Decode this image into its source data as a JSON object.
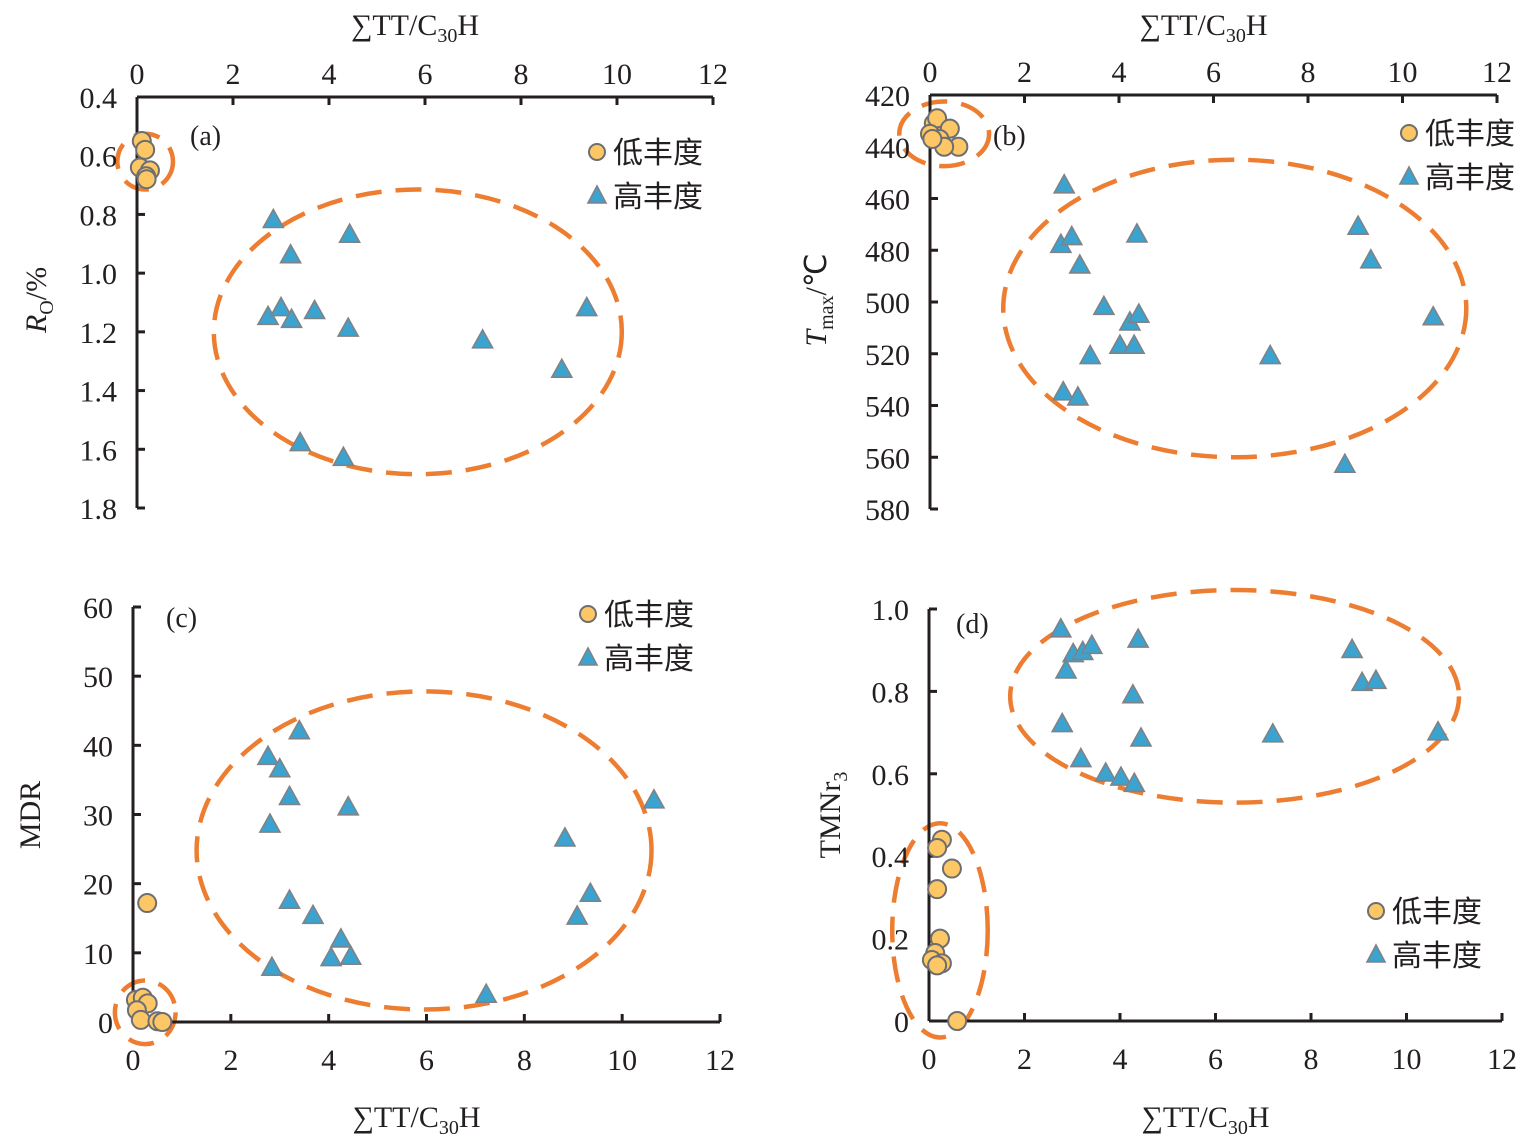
{
  "figure": {
    "legend_low": "低丰度",
    "legend_high": "高丰度",
    "colors": {
      "low": "#fdc766",
      "high": "#3ba3d0",
      "ellipse": "#ed7d31",
      "axis": "#231f20"
    }
  },
  "chart_data": [
    {
      "type": "scatter",
      "panel_label": "(a)",
      "xlabel": "∑TT/C30H",
      "xlabel_main": "∑TT/C",
      "xlabel_sub": "30",
      "xlabel_end": "H",
      "xaxis_position": "top",
      "ylabel_main": "R",
      "ylabel_sub": "O",
      "ylabel_end": "/%",
      "yaxis_inverted": true,
      "xlim": [
        0,
        12
      ],
      "ylim": [
        0.4,
        1.8
      ],
      "xticks": [
        "0",
        "2",
        "4",
        "6",
        "8",
        "10",
        "12"
      ],
      "xtick_values": [
        0,
        2,
        4,
        6,
        8,
        10,
        12
      ],
      "yticks": [
        "0.4",
        "0.6",
        "0.8",
        "1.0",
        "1.2",
        "1.4",
        "1.6",
        "1.8"
      ],
      "ytick_values": [
        0.4,
        0.6,
        0.8,
        1.0,
        1.2,
        1.4,
        1.6,
        1.8
      ],
      "legend": "top-right",
      "grid": false,
      "series": [
        {
          "name": "低丰度",
          "marker": "circle",
          "points": [
            [
              0.1,
              0.55
            ],
            [
              0.17,
              0.58
            ],
            [
              0.06,
              0.64
            ],
            [
              0.27,
              0.65
            ],
            [
              0.19,
              0.67
            ],
            [
              0.2,
              0.68
            ]
          ]
        },
        {
          "name": "高丰度",
          "marker": "triangle",
          "points": [
            [
              2.84,
              0.82
            ],
            [
              3.2,
              0.94
            ],
            [
              4.43,
              0.87
            ],
            [
              2.73,
              1.15
            ],
            [
              3.0,
              1.12
            ],
            [
              3.22,
              1.16
            ],
            [
              3.7,
              1.13
            ],
            [
              4.4,
              1.19
            ],
            [
              7.2,
              1.23
            ],
            [
              8.85,
              1.33
            ],
            [
              9.37,
              1.12
            ],
            [
              3.4,
              1.58
            ],
            [
              4.3,
              1.63
            ]
          ]
        }
      ],
      "ellipses": [
        {
          "group": "低丰度",
          "cx": 0.17,
          "cy": 0.62,
          "rx": 0.58,
          "ry": 0.095
        },
        {
          "group": "高丰度",
          "cx": 5.85,
          "cy": 1.2,
          "rx": 4.25,
          "ry": 0.485
        }
      ]
    },
    {
      "type": "scatter",
      "panel_label": "(b)",
      "xlabel": "∑TT/C30H",
      "xlabel_main": "∑TT/C",
      "xlabel_sub": "30",
      "xlabel_end": "H",
      "xaxis_position": "top",
      "ylabel_main": "T",
      "ylabel_sub": "max",
      "ylabel_end": "/℃",
      "yaxis_inverted": true,
      "xlim": [
        0,
        12
      ],
      "ylim": [
        420,
        580
      ],
      "xticks": [
        "0",
        "2",
        "4",
        "6",
        "8",
        "10",
        "12"
      ],
      "xtick_values": [
        0,
        2,
        4,
        6,
        8,
        10,
        12
      ],
      "yticks": [
        "420",
        "440",
        "460",
        "480",
        "500",
        "520",
        "540",
        "560",
        "580"
      ],
      "ytick_values": [
        420,
        440,
        460,
        480,
        500,
        520,
        540,
        560,
        580
      ],
      "legend": "top-right",
      "grid": false,
      "series": [
        {
          "name": "低丰度",
          "marker": "circle",
          "points": [
            [
              0.08,
              431
            ],
            [
              0.15,
              429
            ],
            [
              0.0,
              435
            ],
            [
              0.42,
              433
            ],
            [
              0.2,
              437
            ],
            [
              0.6,
              440
            ],
            [
              0.3,
              440
            ],
            [
              0.05,
              437
            ]
          ]
        },
        {
          "name": "高丰度",
          "marker": "triangle",
          "points": [
            [
              2.84,
              455
            ],
            [
              2.77,
              478
            ],
            [
              3.0,
              475
            ],
            [
              3.17,
              486
            ],
            [
              4.38,
              474
            ],
            [
              3.68,
              502
            ],
            [
              4.23,
              508
            ],
            [
              4.42,
              505
            ],
            [
              4.02,
              517
            ],
            [
              4.32,
              517
            ],
            [
              3.39,
              521
            ],
            [
              7.2,
              521
            ],
            [
              2.82,
              535
            ],
            [
              3.13,
              537
            ],
            [
              8.78,
              563
            ],
            [
              9.06,
              471
            ],
            [
              9.33,
              484
            ],
            [
              10.65,
              506
            ]
          ]
        }
      ],
      "ellipses": [
        {
          "group": "低丰度",
          "cx": 0.3,
          "cy": 435,
          "rx": 0.95,
          "ry": 12.5
        },
        {
          "group": "高丰度",
          "cx": 6.45,
          "cy": 502.5,
          "rx": 4.9,
          "ry": 57.5
        }
      ]
    },
    {
      "type": "scatter",
      "panel_label": "(c)",
      "xlabel": "∑TT/C30H",
      "xlabel_main": "∑TT/C",
      "xlabel_sub": "30",
      "xlabel_end": "H",
      "xaxis_position": "bottom",
      "ylabel_main": "MDR",
      "ylabel_sub": "",
      "ylabel_end": "",
      "yaxis_inverted": false,
      "xlim": [
        0,
        12
      ],
      "ylim": [
        0,
        60
      ],
      "xticks": [
        "0",
        "2",
        "4",
        "6",
        "8",
        "10",
        "12"
      ],
      "xtick_values": [
        0,
        2,
        4,
        6,
        8,
        10,
        12
      ],
      "yticks": [
        "0",
        "10",
        "20",
        "30",
        "40",
        "50",
        "60"
      ],
      "ytick_values": [
        0,
        10,
        20,
        30,
        40,
        50,
        60
      ],
      "legend": "top-right",
      "grid": false,
      "series": [
        {
          "name": "低丰度",
          "marker": "circle",
          "points": [
            [
              0.29,
              17.2
            ],
            [
              0.06,
              3.2
            ],
            [
              0.2,
              3.5
            ],
            [
              0.3,
              2.7
            ],
            [
              0.08,
              1.7
            ],
            [
              0.16,
              0.3
            ],
            [
              0.5,
              0.1
            ],
            [
              0.6,
              0.0
            ]
          ]
        },
        {
          "name": "高丰度",
          "marker": "triangle",
          "points": [
            [
              3.4,
              42.0
            ],
            [
              2.76,
              38.3
            ],
            [
              3.0,
              36.5
            ],
            [
              3.2,
              32.5
            ],
            [
              4.4,
              31.0
            ],
            [
              2.8,
              28.5
            ],
            [
              10.65,
              32.0
            ],
            [
              8.83,
              26.5
            ],
            [
              9.35,
              18.5
            ],
            [
              9.08,
              15.2
            ],
            [
              3.2,
              17.5
            ],
            [
              3.68,
              15.3
            ],
            [
              4.25,
              11.9
            ],
            [
              4.05,
              9.2
            ],
            [
              4.45,
              9.4
            ],
            [
              2.84,
              7.8
            ],
            [
              7.22,
              3.9
            ]
          ]
        }
      ],
      "ellipses": [
        {
          "group": "低丰度",
          "cx": 0.25,
          "cy": 1.4,
          "rx": 0.62,
          "ry": 4.6
        },
        {
          "group": "高丰度",
          "cx": 5.95,
          "cy": 24.8,
          "rx": 4.65,
          "ry": 23.0
        }
      ]
    },
    {
      "type": "scatter",
      "panel_label": "(d)",
      "xlabel": "∑TT/C30H",
      "xlabel_main": "∑TT/C",
      "xlabel_sub": "30",
      "xlabel_end": "H",
      "xaxis_position": "bottom",
      "ylabel_main": "TMNr",
      "ylabel_sub": "3",
      "ylabel_end": "",
      "yaxis_inverted": false,
      "xlim": [
        0,
        12
      ],
      "ylim": [
        0,
        1.0
      ],
      "xticks": [
        "0",
        "2",
        "4",
        "6",
        "8",
        "10",
        "12"
      ],
      "xtick_values": [
        0,
        2,
        4,
        6,
        8,
        10,
        12
      ],
      "yticks": [
        "0",
        "0.2",
        "0.4",
        "0.6",
        "0.8",
        "1.0"
      ],
      "ytick_values": [
        0,
        0.2,
        0.4,
        0.6,
        0.8,
        1.0
      ],
      "legend": "bottom-right",
      "grid": false,
      "series": [
        {
          "name": "低丰度",
          "marker": "circle",
          "points": [
            [
              0.27,
              0.44
            ],
            [
              0.17,
              0.42
            ],
            [
              0.48,
              0.37
            ],
            [
              0.17,
              0.32
            ],
            [
              0.23,
              0.2
            ],
            [
              0.13,
              0.165
            ],
            [
              0.06,
              0.148
            ],
            [
              0.27,
              0.14
            ],
            [
              0.17,
              0.135
            ],
            [
              0.59,
              0.0
            ]
          ]
        },
        {
          "name": "高丰度",
          "marker": "triangle",
          "points": [
            [
              2.76,
              0.95
            ],
            [
              3.02,
              0.89
            ],
            [
              3.22,
              0.895
            ],
            [
              3.41,
              0.91
            ],
            [
              4.38,
              0.925
            ],
            [
              2.87,
              0.85
            ],
            [
              4.27,
              0.79
            ],
            [
              2.79,
              0.72
            ],
            [
              4.44,
              0.685
            ],
            [
              3.18,
              0.635
            ],
            [
              3.7,
              0.6
            ],
            [
              4.02,
              0.59
            ],
            [
              4.3,
              0.575
            ],
            [
              8.86,
              0.9
            ],
            [
              9.07,
              0.82
            ],
            [
              9.36,
              0.825
            ],
            [
              7.2,
              0.695
            ],
            [
              10.66,
              0.7
            ]
          ]
        }
      ],
      "ellipses": [
        {
          "group": "低丰度",
          "cx": 0.23,
          "cy": 0.22,
          "rx": 1.0,
          "ry": 0.26
        },
        {
          "group": "高丰度",
          "cx": 6.4,
          "cy": 0.788,
          "rx": 4.7,
          "ry": 0.258
        }
      ]
    }
  ]
}
